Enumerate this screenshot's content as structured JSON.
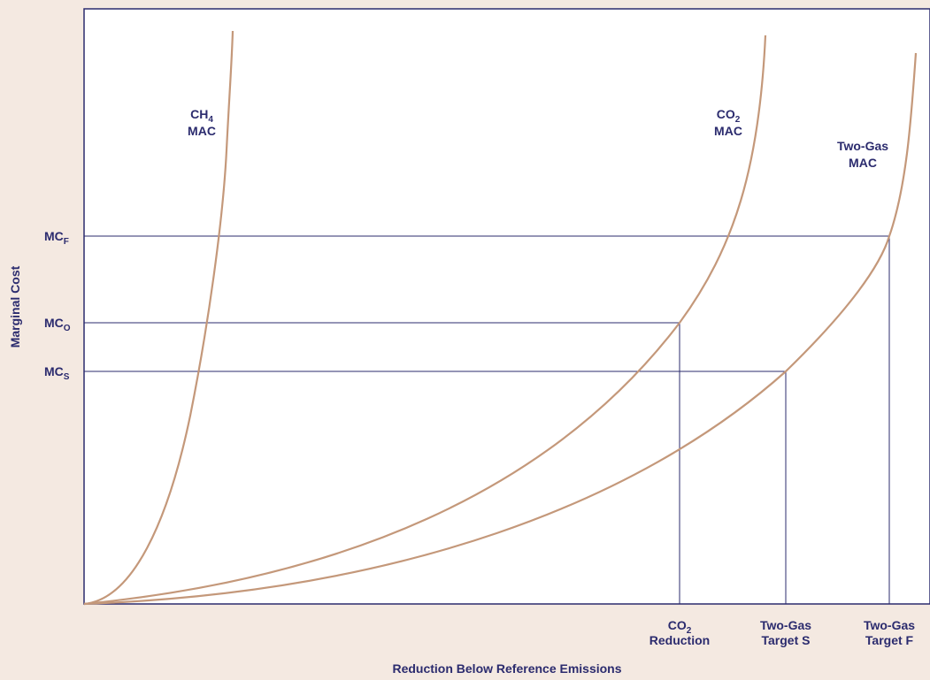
{
  "y_axis_label": "Marginal Cost",
  "x_axis_label": "Reduction Below Reference Emissions",
  "curve_labels": [
    {
      "lines": [
        {
          "text": "CH",
          "sub": "4"
        },
        {
          "text": "MAC"
        }
      ]
    },
    {
      "lines": [
        {
          "text": "CO",
          "sub": "2"
        },
        {
          "text": "MAC"
        }
      ]
    },
    {
      "lines": [
        {
          "text": "Two-Gas"
        },
        {
          "text": "MAC"
        }
      ]
    }
  ],
  "y_levels": [
    {
      "text": "MC",
      "sub": "F"
    },
    {
      "text": "MC",
      "sub": "O"
    },
    {
      "text": "MC",
      "sub": "S"
    }
  ],
  "x_markers": [
    {
      "lines": [
        {
          "text": "CO",
          "sub": "2"
        },
        {
          "text": "Reduction"
        }
      ]
    },
    {
      "lines": [
        {
          "text": "Two-Gas"
        },
        {
          "text": "Target S"
        }
      ]
    },
    {
      "lines": [
        {
          "text": "Two-Gas"
        },
        {
          "text": "Target F"
        }
      ]
    }
  ]
}
